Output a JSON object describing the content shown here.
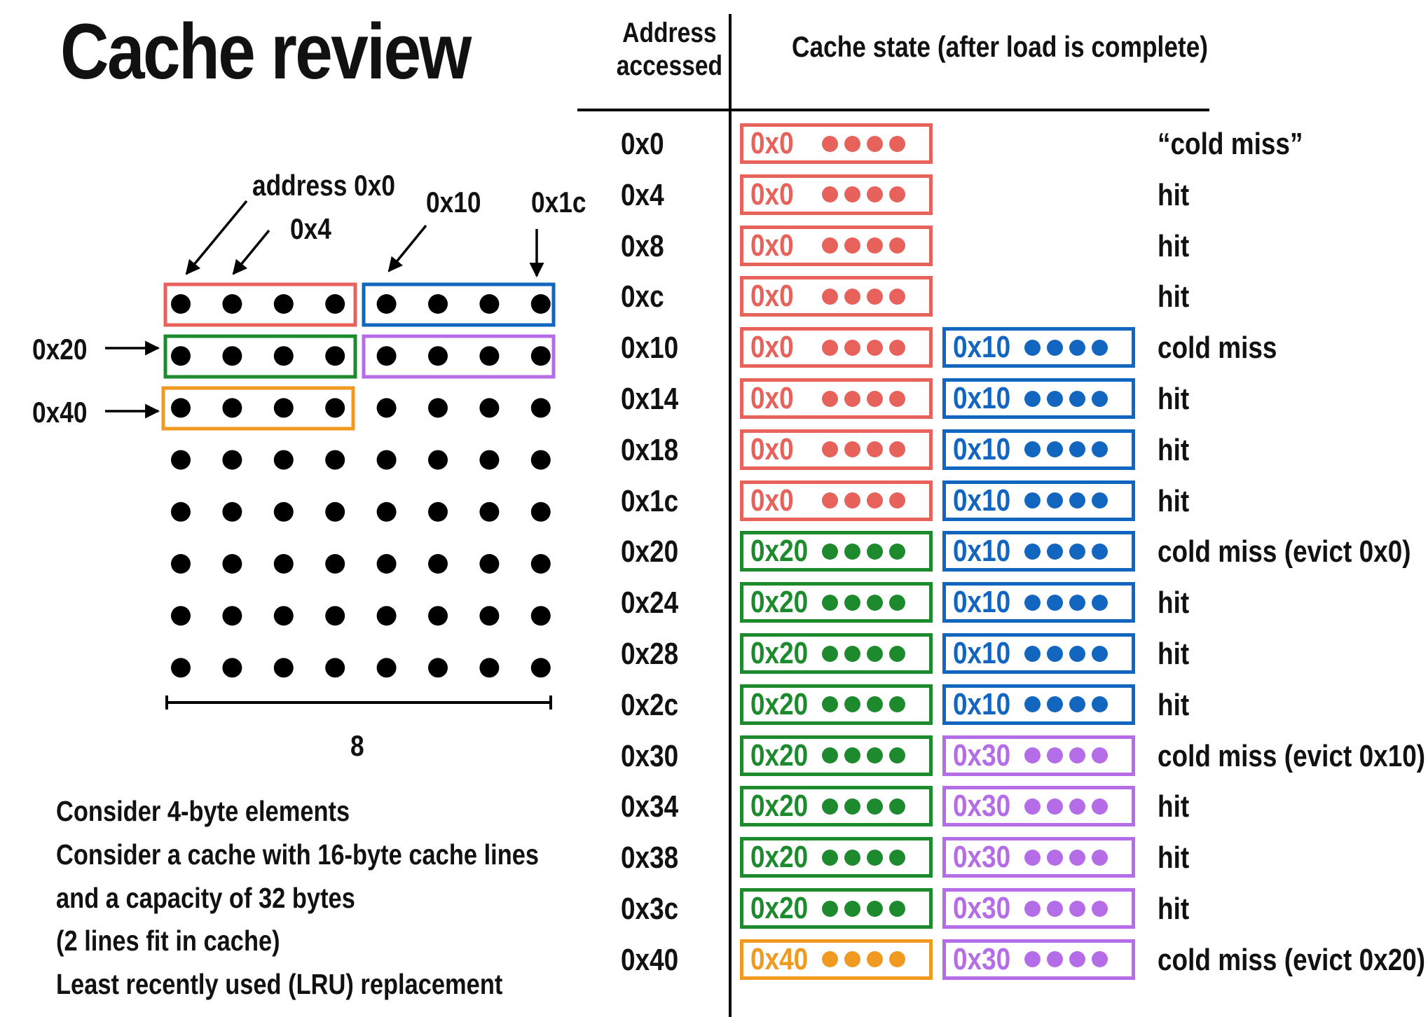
{
  "title": "Cache review",
  "colors": {
    "red": "#e8625c",
    "blue": "#1266bf",
    "green": "#1e8a2e",
    "purple": "#b46de6",
    "orange": "#f09a22",
    "black": "#000000"
  },
  "diagram": {
    "labels": {
      "address_0x0": "address 0x0",
      "addr_0x4": "0x4",
      "addr_0x10": "0x10",
      "addr_0x1c": "0x1c",
      "addr_0x20": "0x20",
      "addr_0x40": "0x40",
      "width": "8"
    },
    "grid_rows": 8,
    "grid_cols": 8
  },
  "notes": [
    "Consider 4-byte elements",
    "Consider a cache with 16-byte cache lines",
    "and a capacity of 32 bytes",
    "(2 lines fit in cache)",
    "Least recently used (LRU) replacement"
  ],
  "table": {
    "header_address": "Address\naccessed",
    "header_state": "Cache state (after load is complete)",
    "rows": [
      {
        "addr": "0x0",
        "line1": {
          "tag": "0x0",
          "color": "red"
        },
        "line2": null,
        "result": "“cold miss”"
      },
      {
        "addr": "0x4",
        "line1": {
          "tag": "0x0",
          "color": "red"
        },
        "line2": null,
        "result": "hit"
      },
      {
        "addr": "0x8",
        "line1": {
          "tag": "0x0",
          "color": "red"
        },
        "line2": null,
        "result": "hit"
      },
      {
        "addr": "0xc",
        "line1": {
          "tag": "0x0",
          "color": "red"
        },
        "line2": null,
        "result": "hit"
      },
      {
        "addr": "0x10",
        "line1": {
          "tag": "0x0",
          "color": "red"
        },
        "line2": {
          "tag": "0x10",
          "color": "blue"
        },
        "result": "cold miss"
      },
      {
        "addr": "0x14",
        "line1": {
          "tag": "0x0",
          "color": "red"
        },
        "line2": {
          "tag": "0x10",
          "color": "blue"
        },
        "result": "hit"
      },
      {
        "addr": "0x18",
        "line1": {
          "tag": "0x0",
          "color": "red"
        },
        "line2": {
          "tag": "0x10",
          "color": "blue"
        },
        "result": "hit"
      },
      {
        "addr": "0x1c",
        "line1": {
          "tag": "0x0",
          "color": "red"
        },
        "line2": {
          "tag": "0x10",
          "color": "blue"
        },
        "result": "hit"
      },
      {
        "addr": "0x20",
        "line1": {
          "tag": "0x20",
          "color": "green"
        },
        "line2": {
          "tag": "0x10",
          "color": "blue"
        },
        "result": "cold miss (evict 0x0)"
      },
      {
        "addr": "0x24",
        "line1": {
          "tag": "0x20",
          "color": "green"
        },
        "line2": {
          "tag": "0x10",
          "color": "blue"
        },
        "result": "hit"
      },
      {
        "addr": "0x28",
        "line1": {
          "tag": "0x20",
          "color": "green"
        },
        "line2": {
          "tag": "0x10",
          "color": "blue"
        },
        "result": "hit"
      },
      {
        "addr": "0x2c",
        "line1": {
          "tag": "0x20",
          "color": "green"
        },
        "line2": {
          "tag": "0x10",
          "color": "blue"
        },
        "result": "hit"
      },
      {
        "addr": "0x30",
        "line1": {
          "tag": "0x20",
          "color": "green"
        },
        "line2": {
          "tag": "0x30",
          "color": "purple"
        },
        "result": "cold miss (evict 0x10)"
      },
      {
        "addr": "0x34",
        "line1": {
          "tag": "0x20",
          "color": "green"
        },
        "line2": {
          "tag": "0x30",
          "color": "purple"
        },
        "result": "hit"
      },
      {
        "addr": "0x38",
        "line1": {
          "tag": "0x20",
          "color": "green"
        },
        "line2": {
          "tag": "0x30",
          "color": "purple"
        },
        "result": "hit"
      },
      {
        "addr": "0x3c",
        "line1": {
          "tag": "0x20",
          "color": "green"
        },
        "line2": {
          "tag": "0x30",
          "color": "purple"
        },
        "result": "hit"
      },
      {
        "addr": "0x40",
        "line1": {
          "tag": "0x40",
          "color": "orange"
        },
        "line2": {
          "tag": "0x30",
          "color": "purple"
        },
        "result": "cold miss (evict 0x20)"
      }
    ]
  }
}
